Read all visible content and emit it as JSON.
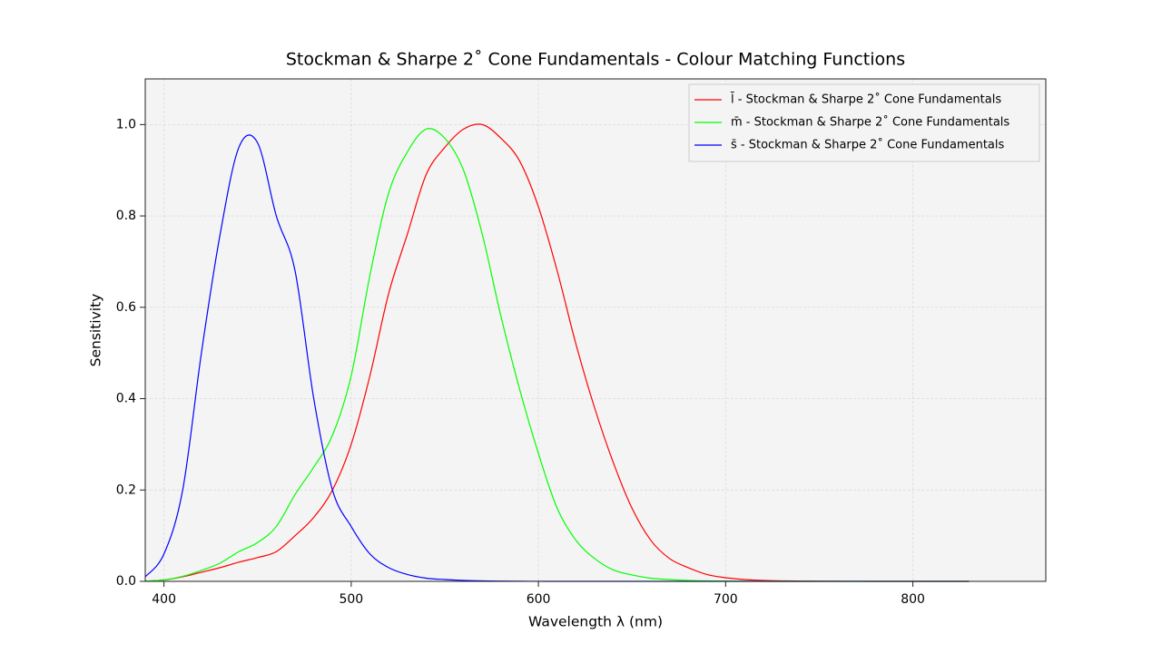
{
  "chart_data": {
    "type": "line",
    "title": "Stockman & Sharpe 2˚ Cone Fundamentals - Colour Matching Functions",
    "x_label": "Wavelength λ (nm)",
    "y_label": "Sensitivity",
    "xlim": [
      390,
      871
    ],
    "ylim": [
      0,
      1.1
    ],
    "xticks": [
      400,
      500,
      600,
      700,
      800
    ],
    "yticks": [
      {
        "value": 0,
        "label": "0.0"
      },
      0.2,
      0.4,
      0.6,
      0.8,
      {
        "value": 1,
        "label": "1.0"
      }
    ],
    "grid": true,
    "legend": "upper right",
    "x": [
      390,
      400,
      410,
      420,
      430,
      440,
      450,
      460,
      470,
      480,
      490,
      500,
      510,
      520,
      530,
      540,
      550,
      560,
      570,
      580,
      590,
      600,
      610,
      620,
      630,
      640,
      650,
      660,
      670,
      680,
      690,
      700,
      710,
      720,
      730,
      740,
      750,
      760,
      770,
      780,
      790,
      800,
      810,
      820,
      830
    ],
    "series": [
      {
        "name": "l̄ - Stockman & Sharpe 2˚ Cone Fundamentals",
        "color": "#ff0000",
        "values": [
          0.0004,
          0.003,
          0.01,
          0.02,
          0.03,
          0.042,
          0.052,
          0.065,
          0.1,
          0.14,
          0.2,
          0.3,
          0.45,
          0.63,
          0.76,
          0.89,
          0.95,
          0.99,
          1.0,
          0.97,
          0.92,
          0.82,
          0.68,
          0.52,
          0.38,
          0.26,
          0.16,
          0.09,
          0.05,
          0.03,
          0.015,
          0.008,
          0.004,
          0.002,
          0.001,
          0.0006,
          0.0003,
          0.0002,
          0.0001,
          5e-05,
          0,
          0,
          0,
          0,
          0
        ]
      },
      {
        "name": "m̄ - Stockman & Sharpe 2˚ Cone Fundamentals",
        "color": "#00ff00",
        "values": [
          0.0004,
          0.003,
          0.011,
          0.024,
          0.04,
          0.065,
          0.085,
          0.12,
          0.19,
          0.25,
          0.32,
          0.45,
          0.67,
          0.85,
          0.94,
          0.99,
          0.97,
          0.9,
          0.76,
          0.58,
          0.42,
          0.28,
          0.16,
          0.09,
          0.05,
          0.025,
          0.014,
          0.007,
          0.004,
          0.002,
          0.001,
          0.0005,
          0.0002,
          0.0001,
          0,
          0,
          0,
          0,
          0,
          0,
          0,
          0,
          0,
          0,
          0
        ]
      },
      {
        "name": "s̄ - Stockman & Sharpe 2˚ Cone Fundamentals",
        "color": "#0000ff",
        "values": [
          0.01,
          0.06,
          0.2,
          0.5,
          0.76,
          0.95,
          0.96,
          0.8,
          0.68,
          0.4,
          0.2,
          0.12,
          0.06,
          0.03,
          0.015,
          0.007,
          0.004,
          0.002,
          0.001,
          0.0005,
          0.0002,
          0.0001,
          0,
          0,
          0,
          0,
          0,
          0,
          0,
          0,
          0,
          0,
          0,
          0,
          0,
          0,
          0,
          0,
          0,
          0,
          0,
          0,
          0,
          0,
          0
        ]
      }
    ]
  }
}
